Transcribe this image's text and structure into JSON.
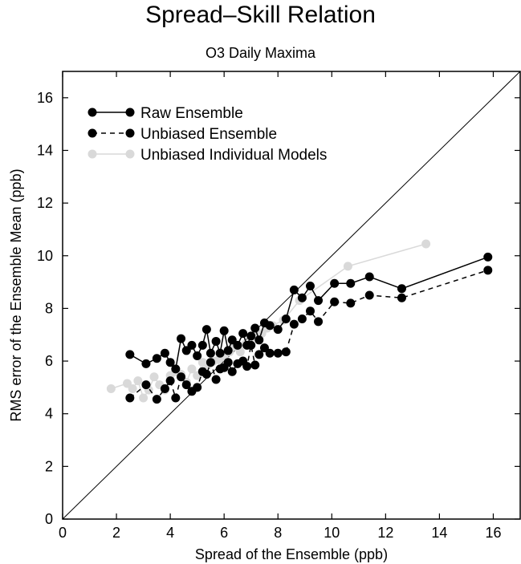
{
  "chart_data": {
    "type": "line",
    "title": "Spread–Skill Relation",
    "subtitle": "O3 Daily Maxima",
    "xlabel": "Spread of the Ensemble (ppb)",
    "ylabel": "RMS error of the Ensemble Mean (ppb)",
    "xlim": [
      0,
      17
    ],
    "ylim": [
      0,
      17
    ],
    "xticks": [
      0,
      2,
      4,
      6,
      8,
      10,
      12,
      14,
      16
    ],
    "yticks": [
      0,
      2,
      4,
      6,
      8,
      10,
      12,
      14,
      16
    ],
    "grid": false,
    "legend_position": "top-left",
    "reference_line": "y = x",
    "series": [
      {
        "name": "Raw Ensemble",
        "color": "#000000",
        "dash": "solid",
        "x": [
          2.5,
          3.1,
          3.5,
          3.8,
          4.0,
          4.2,
          4.4,
          4.6,
          4.8,
          5.0,
          5.2,
          5.35,
          5.5,
          5.7,
          5.85,
          6.0,
          6.15,
          6.3,
          6.5,
          6.7,
          6.85,
          7.0,
          7.15,
          7.3,
          7.5,
          7.7,
          8.0,
          8.3,
          8.6,
          8.9,
          9.2,
          9.5,
          10.1,
          10.7,
          11.4,
          12.6,
          15.8
        ],
        "y": [
          6.25,
          5.9,
          6.1,
          6.3,
          5.95,
          5.7,
          6.85,
          6.4,
          6.6,
          6.2,
          6.6,
          7.2,
          6.3,
          6.75,
          6.3,
          7.15,
          6.4,
          6.8,
          6.6,
          7.05,
          6.6,
          6.95,
          7.25,
          6.8,
          7.45,
          7.35,
          7.2,
          7.6,
          8.7,
          8.4,
          8.85,
          8.3,
          8.95,
          8.95,
          9.2,
          8.75,
          9.95
        ]
      },
      {
        "name": "Unbiased Ensemble",
        "color": "#000000",
        "dash": "dashed",
        "x": [
          2.5,
          3.1,
          3.5,
          3.8,
          4.0,
          4.2,
          4.4,
          4.6,
          4.8,
          5.0,
          5.2,
          5.35,
          5.5,
          5.7,
          5.85,
          6.0,
          6.15,
          6.3,
          6.5,
          6.7,
          6.85,
          7.0,
          7.15,
          7.3,
          7.5,
          7.7,
          8.0,
          8.3,
          8.6,
          8.9,
          9.2,
          9.5,
          10.1,
          10.7,
          11.4,
          12.6,
          15.8
        ],
        "y": [
          4.6,
          5.1,
          4.55,
          4.95,
          5.25,
          4.6,
          5.4,
          5.1,
          4.85,
          5.0,
          5.6,
          5.5,
          5.95,
          5.3,
          5.7,
          5.75,
          5.95,
          5.6,
          5.9,
          6.0,
          5.8,
          6.6,
          5.85,
          6.25,
          6.5,
          6.3,
          6.3,
          6.35,
          7.4,
          7.6,
          7.9,
          7.5,
          8.25,
          8.2,
          8.5,
          8.4,
          9.45
        ]
      },
      {
        "name": "Unbiased Individual Models",
        "color": "#d9d9d9",
        "dash": "solid",
        "x": [
          1.8,
          2.4,
          2.6,
          2.8,
          3.0,
          3.2,
          3.4,
          3.6,
          3.8,
          4.0,
          4.2,
          4.4,
          4.6,
          4.8,
          5.0,
          5.2,
          5.4,
          5.6,
          5.8,
          6.0,
          6.2,
          6.4,
          6.6,
          6.8,
          7.0,
          7.2,
          7.4,
          7.6,
          7.8,
          8.2,
          8.8,
          10.6,
          13.5
        ],
        "y": [
          4.95,
          5.15,
          4.95,
          5.25,
          4.6,
          4.9,
          5.4,
          5.1,
          4.9,
          5.45,
          5.6,
          5.5,
          5.2,
          5.7,
          5.45,
          5.95,
          5.85,
          6.0,
          6.05,
          6.15,
          6.35,
          6.55,
          6.35,
          6.65,
          6.9,
          7.0,
          7.05,
          7.25,
          7.35,
          7.55,
          8.3,
          9.6,
          10.45
        ]
      }
    ]
  }
}
